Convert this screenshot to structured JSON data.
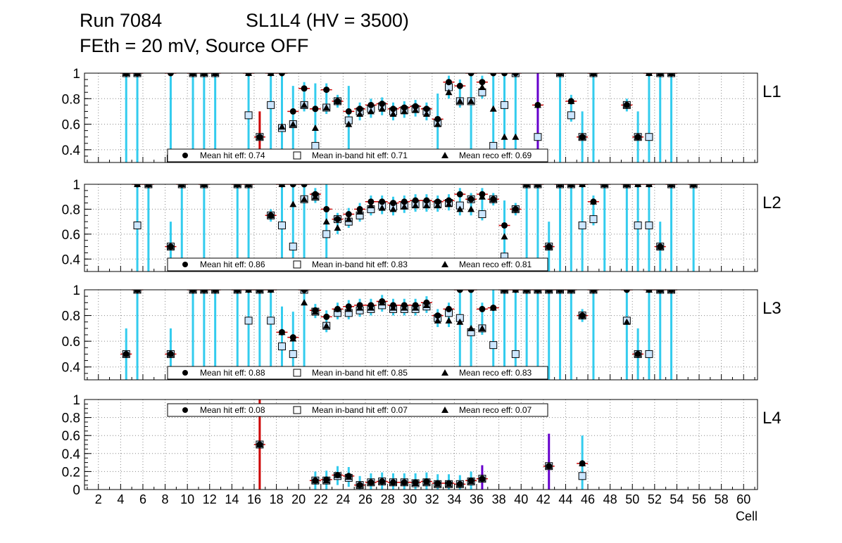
{
  "title": {
    "run": "Run 7084",
    "chamber": "SL1L4 (HV = 3500)",
    "line2": "FEth = 20 mV, Source OFF"
  },
  "chart_data": {
    "type": "scatter",
    "xlabel": "Cell",
    "x_ticks": [
      "2",
      "4",
      "6",
      "8",
      "10",
      "12",
      "14",
      "16",
      "18",
      "20",
      "22",
      "24",
      "26",
      "28",
      "30",
      "32",
      "34",
      "36",
      "38",
      "40",
      "42",
      "44",
      "46",
      "48",
      "50",
      "52",
      "54",
      "56",
      "58",
      "60"
    ],
    "markers": {
      "hit": "●",
      "inband": "□",
      "reco": "▲"
    },
    "colors": {
      "hit": "#000000",
      "inband_fill": "#cce6ff",
      "reco": "#000000",
      "err_bar": "#33ccee",
      "err_red": "#cc0000",
      "err_purple": "#6600cc",
      "grid": "#888888"
    },
    "panels": [
      {
        "layer": "L1",
        "ylim": [
          0.3,
          1.0
        ],
        "y_ticks": [
          "0.4",
          "0.6",
          "0.8",
          "1"
        ],
        "legend": {
          "hit": "Mean hit  eff: 0.74",
          "inband": "Mean in-band hit eff: 0.71",
          "reco": "Mean reco eff: 0.69"
        },
        "cells": [
          4,
          5,
          8,
          10,
          11,
          12,
          15,
          16,
          17,
          18,
          19,
          20,
          21,
          22,
          23,
          24,
          25,
          26,
          27,
          28,
          29,
          30,
          31,
          32,
          33,
          34,
          35,
          36,
          37,
          38,
          39,
          41,
          43,
          44,
          45,
          46,
          49,
          50,
          51,
          52,
          53
        ],
        "hit": [
          1,
          1,
          1,
          1,
          1,
          1,
          1,
          0.5,
          1,
          1,
          0.7,
          0.88,
          0.72,
          0.87,
          0.78,
          0.7,
          0.72,
          0.75,
          0.76,
          0.72,
          0.73,
          0.74,
          0.72,
          0.64,
          0.93,
          0.9,
          1,
          0.93,
          1,
          1,
          1,
          0.75,
          1,
          0.78,
          0.5,
          1,
          0.75,
          0.5,
          1,
          1,
          1
        ],
        "inband": [
          1,
          1,
          0.33,
          1,
          1,
          1,
          0.67,
          0.5,
          0.75,
          0.57,
          0.6,
          0.75,
          0.43,
          0.73,
          0.78,
          0.63,
          0.7,
          0.72,
          0.74,
          0.7,
          0.71,
          0.72,
          0.7,
          0.61,
          0.89,
          0.78,
          0.78,
          0.85,
          0.43,
          0.75,
          1,
          0.5,
          1,
          0.67,
          0.5,
          1,
          0.75,
          0.5,
          0.5,
          1,
          1
        ],
        "reco": [
          1,
          1,
          0.33,
          1,
          1,
          1,
          1,
          0.5,
          1,
          0.58,
          0.6,
          0.75,
          0.57,
          0.73,
          0.78,
          0.6,
          0.68,
          0.7,
          0.72,
          0.68,
          0.7,
          0.71,
          0.68,
          0.6,
          0.85,
          0.78,
          0.78,
          0.89,
          0.72,
          0.5,
          0.5,
          0.75,
          1,
          0.78,
          0.5,
          1,
          0.75,
          0.5,
          1,
          1,
          1
        ]
      },
      {
        "layer": "L2",
        "ylim": [
          0.3,
          1.0
        ],
        "y_ticks": [
          "0.4",
          "0.6",
          "0.8",
          "1"
        ],
        "legend": {
          "hit": "Mean hit  eff: 0.86",
          "inband": "Mean in-band hit eff: 0.83",
          "reco": "Mean reco eff: 0.81"
        },
        "cells": [
          5,
          6,
          8,
          9,
          11,
          14,
          15,
          17,
          18,
          19,
          20,
          21,
          22,
          23,
          24,
          25,
          26,
          27,
          28,
          29,
          30,
          31,
          32,
          33,
          34,
          35,
          36,
          37,
          38,
          39,
          40,
          41,
          42,
          43,
          44,
          45,
          46,
          47,
          49,
          50,
          51,
          52,
          53,
          55
        ],
        "hit": [
          1,
          1,
          0.5,
          1,
          1,
          1,
          1,
          0.75,
          1,
          1,
          1,
          0.92,
          0.8,
          0.72,
          0.76,
          0.8,
          0.86,
          0.86,
          0.85,
          0.86,
          0.87,
          0.87,
          0.86,
          0.87,
          0.92,
          0.88,
          0.92,
          0.88,
          0.67,
          0.8,
          1,
          1,
          0.5,
          1,
          1,
          1,
          0.86,
          1,
          1,
          1,
          1,
          0.5,
          1,
          1
        ],
        "inband": [
          0.67,
          1,
          0.5,
          1,
          1,
          1,
          1,
          0.75,
          0.67,
          0.5,
          0.88,
          0.9,
          0.6,
          0.72,
          0.7,
          0.75,
          0.8,
          0.83,
          0.82,
          0.83,
          0.84,
          0.84,
          0.84,
          0.85,
          0.83,
          0.88,
          0.76,
          0.88,
          0.42,
          0.8,
          1,
          1,
          0.5,
          1,
          1,
          0.67,
          0.72,
          1,
          1,
          0.67,
          0.67,
          0.5,
          1,
          1
        ],
        "reco": [
          1,
          1,
          0.5,
          1,
          1,
          1,
          1,
          0.75,
          1,
          0.84,
          0.88,
          0.9,
          0.7,
          0.65,
          0.72,
          0.78,
          0.83,
          0.81,
          0.8,
          0.82,
          0.83,
          0.83,
          0.83,
          0.84,
          0.8,
          0.8,
          0.9,
          0.88,
          0.58,
          0.8,
          1,
          1,
          0.5,
          1,
          1,
          1,
          0.86,
          1,
          1,
          1,
          1,
          0.5,
          1,
          1
        ]
      },
      {
        "layer": "L3",
        "ylim": [
          0.3,
          1.0
        ],
        "y_ticks": [
          "0.4",
          "0.6",
          "0.8",
          "1"
        ],
        "legend": {
          "hit": "Mean hit  eff: 0.88",
          "inband": "Mean in-band hit eff: 0.85",
          "reco": "Mean reco eff: 0.83"
        },
        "cells": [
          4,
          5,
          8,
          10,
          11,
          12,
          14,
          15,
          16,
          17,
          18,
          19,
          20,
          21,
          22,
          23,
          24,
          25,
          26,
          27,
          28,
          29,
          30,
          31,
          32,
          33,
          34,
          35,
          36,
          37,
          38,
          39,
          40,
          41,
          42,
          43,
          44,
          45,
          46,
          49,
          50,
          51,
          52,
          53
        ],
        "hit": [
          0.5,
          1,
          0.5,
          1,
          1,
          1,
          1,
          1,
          1,
          1,
          0.67,
          0.63,
          1,
          0.84,
          0.79,
          0.85,
          0.87,
          0.88,
          0.88,
          0.91,
          0.88,
          0.88,
          0.88,
          0.9,
          0.8,
          0.85,
          1,
          1,
          0.85,
          0.86,
          1,
          1,
          1,
          1,
          1,
          1,
          1,
          0.8,
          1,
          1,
          0.5,
          1,
          1,
          1
        ],
        "inband": [
          0.5,
          1,
          0.5,
          1,
          1,
          1,
          1,
          0.76,
          1,
          0.76,
          0.56,
          0.5,
          1,
          0.83,
          0.72,
          0.82,
          0.82,
          0.84,
          0.85,
          0.88,
          0.85,
          0.85,
          0.85,
          0.87,
          0.78,
          0.82,
          0.78,
          0.67,
          0.7,
          0.57,
          1,
          0.5,
          1,
          1,
          1,
          1,
          1,
          0.8,
          1,
          0.76,
          0.5,
          0.5,
          1,
          1
        ],
        "reco": [
          0.5,
          1,
          0.5,
          1,
          1,
          1,
          1,
          1,
          1,
          1,
          0.67,
          0.62,
          0.9,
          0.83,
          0.72,
          0.85,
          0.85,
          0.86,
          0.86,
          0.9,
          0.86,
          0.86,
          0.86,
          0.88,
          0.76,
          0.76,
          0.75,
          0.7,
          0.7,
          0.86,
          1,
          1,
          1,
          1,
          1,
          1,
          1,
          0.8,
          1,
          0.75,
          0.5,
          1,
          1,
          1
        ]
      },
      {
        "layer": "L4",
        "ylim": [
          0,
          1.0
        ],
        "y_ticks": [
          "0",
          "0.2",
          "0.4",
          "0.6",
          "0.8",
          "1"
        ],
        "legend": {
          "hit": "Mean hit  eff: 0.08",
          "inband": "Mean in-band hit eff: 0.07",
          "reco": "Mean reco eff: 0.07"
        },
        "cells": [
          16,
          21,
          22,
          23,
          24,
          25,
          26,
          27,
          28,
          29,
          30,
          31,
          32,
          33,
          34,
          35,
          36,
          42,
          45
        ],
        "hit": [
          0.5,
          0.1,
          0.11,
          0.16,
          0.15,
          0.05,
          0.08,
          0.09,
          0.08,
          0.08,
          0.08,
          0.09,
          0.07,
          0.07,
          0.06,
          0.1,
          0.12,
          0.26,
          0.29
        ],
        "inband": [
          0.5,
          0.1,
          0.1,
          0.15,
          0.13,
          0.05,
          0.08,
          0.09,
          0.08,
          0.08,
          0.07,
          0.08,
          0.06,
          0.06,
          0.06,
          0.09,
          0.12,
          0.26,
          0.15
        ],
        "reco": [
          0.5,
          0.1,
          0.1,
          0.16,
          0.14,
          0.05,
          0.08,
          0.09,
          0.08,
          0.08,
          0.07,
          0.08,
          0.06,
          0.06,
          0.06,
          0.09,
          0.12,
          0.26,
          0.29
        ]
      }
    ]
  }
}
